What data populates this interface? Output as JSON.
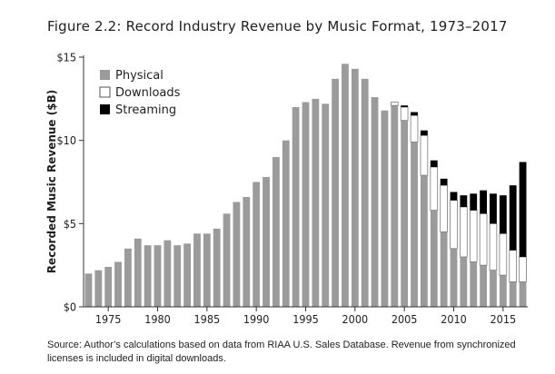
{
  "figure": {
    "title": "Figure 2.2: Record Industry Revenue by Music Format, 1973–2017",
    "source": "Source: Author’s calculations based on data from RIAA U.S. Sales Database. Revenue from synchronized licenses is included in digital downloads."
  },
  "chart_data": {
    "type": "bar",
    "stacked": true,
    "title": "Figure 2.2: Record Industry Revenue by Music Format, 1973–2017",
    "xlabel": "",
    "ylabel": "Recorded Music Revenue ($B)",
    "ylim": [
      0,
      15
    ],
    "yticks": [
      0,
      5,
      10,
      15
    ],
    "ytick_labels": [
      "$0",
      "$5",
      "$10",
      "$15"
    ],
    "xticks": [
      1975,
      1980,
      1985,
      1990,
      1995,
      2000,
      2005,
      2010,
      2015
    ],
    "grid": false,
    "legend_position": "top-left",
    "categories": [
      1973,
      1974,
      1975,
      1976,
      1977,
      1978,
      1979,
      1980,
      1981,
      1982,
      1983,
      1984,
      1985,
      1986,
      1987,
      1988,
      1989,
      1990,
      1991,
      1992,
      1993,
      1994,
      1995,
      1996,
      1997,
      1998,
      1999,
      2000,
      2001,
      2002,
      2003,
      2004,
      2005,
      2006,
      2007,
      2008,
      2009,
      2010,
      2011,
      2012,
      2013,
      2014,
      2015,
      2016,
      2017
    ],
    "series": [
      {
        "name": "Physical",
        "color": "#9b9b9b",
        "values": [
          2.0,
          2.2,
          2.4,
          2.7,
          3.5,
          4.1,
          3.7,
          3.7,
          4.0,
          3.7,
          3.8,
          4.4,
          4.4,
          4.7,
          5.6,
          6.3,
          6.6,
          7.5,
          7.8,
          9.0,
          10.0,
          12.0,
          12.3,
          12.5,
          12.2,
          13.7,
          14.6,
          14.3,
          13.7,
          12.6,
          11.8,
          12.1,
          11.2,
          9.9,
          7.9,
          5.8,
          4.5,
          3.5,
          3.0,
          2.7,
          2.5,
          2.2,
          1.9,
          1.5,
          1.5
        ]
      },
      {
        "name": "Downloads",
        "color": "#ffffff",
        "values": [
          0,
          0,
          0,
          0,
          0,
          0,
          0,
          0,
          0,
          0,
          0,
          0,
          0,
          0,
          0,
          0,
          0,
          0,
          0,
          0,
          0,
          0,
          0,
          0,
          0,
          0,
          0,
          0,
          0,
          0,
          0,
          0.2,
          0.8,
          1.6,
          2.4,
          2.6,
          2.8,
          2.9,
          3.0,
          3.1,
          3.1,
          2.8,
          2.5,
          1.9,
          1.5
        ]
      },
      {
        "name": "Streaming",
        "color": "#000000",
        "values": [
          0,
          0,
          0,
          0,
          0,
          0,
          0,
          0,
          0,
          0,
          0,
          0,
          0,
          0,
          0,
          0,
          0,
          0,
          0,
          0,
          0,
          0,
          0,
          0,
          0,
          0,
          0,
          0,
          0,
          0,
          0,
          0,
          0.1,
          0.2,
          0.3,
          0.4,
          0.4,
          0.5,
          0.7,
          1.0,
          1.4,
          1.8,
          2.3,
          3.9,
          5.7
        ]
      }
    ]
  }
}
